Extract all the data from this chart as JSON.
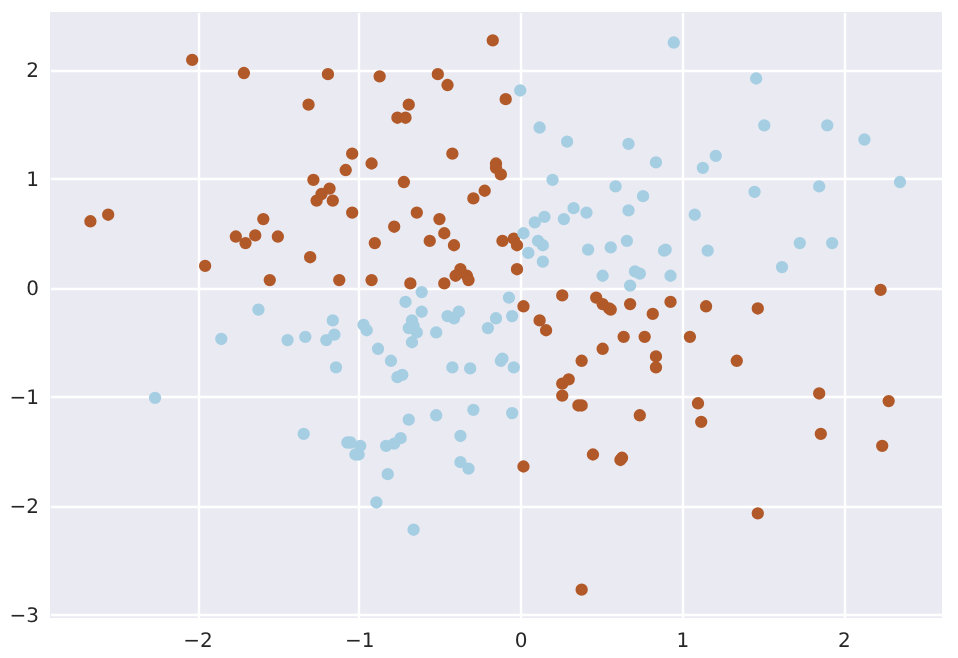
{
  "chart_data": {
    "type": "scatter",
    "marker": "circle",
    "grid": true,
    "xlim": [
      -2.91,
      2.61
    ],
    "ylim": [
      -3.03,
      2.53
    ],
    "xticks": [
      -2,
      -1,
      0,
      1,
      2
    ],
    "yticks": [
      -3,
      -2,
      -1,
      0,
      1,
      2
    ],
    "series": [
      {
        "color": "#b15928",
        "x": [
          -2.03,
          -1.71,
          -1.19,
          -1.31,
          -0.17,
          -0.51,
          -0.45,
          -0.09,
          -0.69,
          -0.76,
          -0.71,
          -0.87,
          -0.42,
          -0.92,
          -1.04,
          -1.08,
          -0.72,
          -0.15,
          -0.15,
          -0.12,
          -0.22,
          -0.29,
          -1.04,
          -0.64,
          -0.5,
          -0.78,
          -0.47,
          -0.9,
          -0.56,
          -0.41,
          -0.11,
          -0.04,
          -0.02,
          -0.02,
          -0.37,
          -0.33,
          -0.4,
          -0.32,
          -0.92,
          -0.68,
          -0.47,
          0.02,
          0.12,
          0.16,
          0.26,
          0.47,
          0.51,
          0.55,
          0.56,
          0.68,
          -1.28,
          -1.23,
          -1.26,
          -1.18,
          -1.16,
          -2.66,
          -2.55,
          -1.59,
          -1.76,
          -1.7,
          -1.64,
          -1.5,
          -1.3,
          -1.95,
          -1.55,
          -1.12,
          2.23,
          0.82,
          0.93,
          1.15,
          1.47,
          0.77,
          1.05,
          0.84,
          0.84,
          1.34,
          1.85,
          2.28,
          0.74,
          1.1,
          1.12,
          1.86,
          2.24,
          1.47,
          0.51,
          0.64,
          0.38,
          0.26,
          0.3,
          0.26,
          0.36,
          0.38,
          0.45,
          0.62,
          0.63,
          0.02,
          0.38
        ],
        "values": [
          2.09,
          1.97,
          1.96,
          1.68,
          2.27,
          1.96,
          1.86,
          1.73,
          1.68,
          1.56,
          1.56,
          1.94,
          1.23,
          1.14,
          1.23,
          1.08,
          0.97,
          1.14,
          1.1,
          1.04,
          0.89,
          0.82,
          0.69,
          0.69,
          0.63,
          0.56,
          0.5,
          0.41,
          0.43,
          0.39,
          0.43,
          0.45,
          0.39,
          0.17,
          0.17,
          0.11,
          0.11,
          0.07,
          0.07,
          0.04,
          0.04,
          -0.17,
          -0.3,
          -0.39,
          -0.07,
          -0.09,
          -0.15,
          -0.19,
          -0.2,
          -0.15,
          0.99,
          0.86,
          0.8,
          0.91,
          0.8,
          0.61,
          0.67,
          0.63,
          0.47,
          0.41,
          0.48,
          0.47,
          0.28,
          0.2,
          0.07,
          0.07,
          -0.02,
          -0.24,
          -0.13,
          -0.17,
          -0.19,
          -0.45,
          -0.45,
          -0.63,
          -0.73,
          -0.67,
          -0.97,
          -1.04,
          -1.17,
          -1.06,
          -1.23,
          -1.34,
          -1.45,
          -2.07,
          -0.56,
          -0.45,
          -0.67,
          -0.88,
          -0.84,
          -0.99,
          -1.08,
          -1.08,
          -1.53,
          -1.58,
          -1.56,
          -1.64,
          -2.77
        ]
      },
      {
        "color": "#a6cee3",
        "x": [
          0.0,
          0.12,
          0.29,
          0.67,
          0.2,
          0.59,
          0.76,
          0.67,
          0.33,
          0.41,
          0.27,
          0.15,
          0.09,
          0.02,
          0.11,
          0.14,
          0.05,
          0.14,
          0.42,
          0.56,
          0.66,
          0.51,
          0.71,
          0.74,
          0.68,
          -0.61,
          -0.71,
          -0.61,
          -0.07,
          -0.15,
          -0.05,
          -0.45,
          -0.38,
          -0.41,
          -0.67,
          0.95,
          1.46,
          1.51,
          1.9,
          2.13,
          0.84,
          1.13,
          1.21,
          1.45,
          1.85,
          2.35,
          1.08,
          0.89,
          0.9,
          1.16,
          1.73,
          1.93,
          1.62,
          0.93,
          -1.62,
          -1.16,
          -1.15,
          -1.2,
          -1.85,
          -1.44,
          -1.33,
          -1.14,
          -2.26,
          -1.34,
          -1.05,
          -1.02,
          -0.97,
          -0.95,
          -0.69,
          -0.66,
          -0.64,
          -0.67,
          -0.52,
          -0.2,
          -0.88,
          -0.8,
          -0.76,
          -0.73,
          -0.42,
          -0.31,
          -0.12,
          -0.11,
          -0.04,
          -0.29,
          -0.05,
          -0.52,
          -0.69,
          -1.07,
          -0.99,
          -1.0,
          -0.83,
          -0.78,
          -0.74,
          -0.37,
          -0.37,
          -0.32,
          -0.82,
          -0.89,
          -0.66
        ],
        "values": [
          1.81,
          1.47,
          1.34,
          1.32,
          0.99,
          0.93,
          0.84,
          0.71,
          0.73,
          0.69,
          0.63,
          0.65,
          0.6,
          0.5,
          0.43,
          0.39,
          0.32,
          0.24,
          0.35,
          0.37,
          0.43,
          0.11,
          0.15,
          0.13,
          0.02,
          -0.04,
          -0.13,
          -0.22,
          -0.09,
          -0.28,
          -0.26,
          -0.26,
          -0.22,
          -0.28,
          -0.3,
          2.25,
          1.92,
          1.49,
          1.49,
          1.36,
          1.15,
          1.1,
          1.21,
          0.88,
          0.93,
          0.97,
          0.67,
          0.34,
          0.35,
          0.34,
          0.41,
          0.41,
          0.19,
          0.11,
          -0.2,
          -0.3,
          -0.43,
          -0.48,
          -0.47,
          -0.48,
          -0.45,
          -0.73,
          -1.01,
          -1.34,
          -1.42,
          -1.53,
          -0.34,
          -0.39,
          -0.37,
          -0.35,
          -0.41,
          -0.5,
          -0.41,
          -0.37,
          -0.56,
          -0.67,
          -0.82,
          -0.8,
          -0.73,
          -0.74,
          -0.67,
          -0.65,
          -0.73,
          -1.12,
          -1.15,
          -1.17,
          -1.21,
          -1.42,
          -1.45,
          -1.53,
          -1.45,
          -1.43,
          -1.38,
          -1.36,
          -1.6,
          -1.66,
          -1.71,
          -1.97,
          -2.22
        ]
      }
    ]
  }
}
